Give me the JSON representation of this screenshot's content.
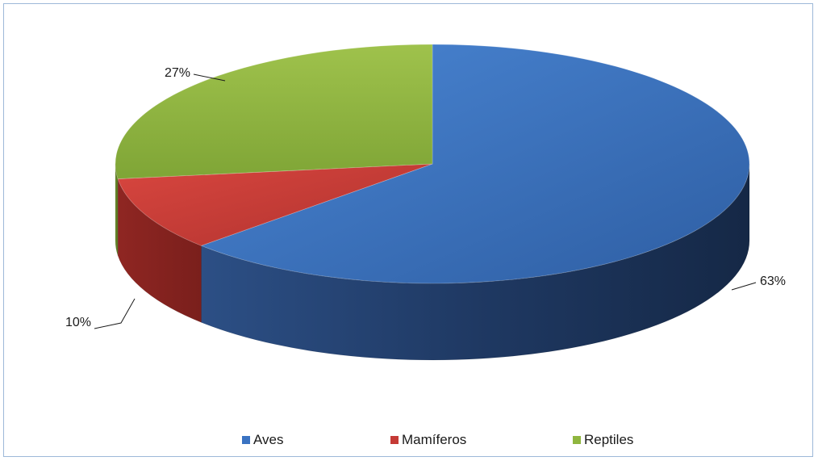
{
  "chart_data": {
    "type": "pie",
    "style": "3d",
    "categories": [
      "Aves",
      "Mamíferos",
      "Reptiles"
    ],
    "values": [
      63,
      10,
      27
    ],
    "data_labels": [
      "63%",
      "10%",
      "27%"
    ],
    "colors": [
      "#3a73c2",
      "#c53a36",
      "#8fb63f"
    ],
    "legend": {
      "position": "bottom",
      "entries": [
        "Aves",
        "Mamíferos",
        "Reptiles"
      ]
    }
  }
}
